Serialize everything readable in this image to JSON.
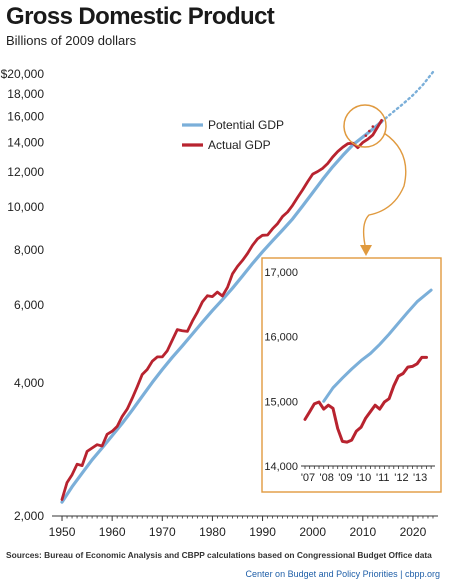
{
  "title": "Gross Domestic Product",
  "subtitle": "Billions of 2009 dollars",
  "source": "Sources: Bureau of Economic Analysis and CBPP calculations based on Congressional Budget Office data",
  "credit": "Center on Budget and Policy Priorities | cbpp.org",
  "colors": {
    "potential": "#7bafd9",
    "actual": "#b8232f",
    "inset_border": "#e09a3f",
    "axis": "#333333"
  },
  "chart_data": [
    {
      "type": "line",
      "yscale": "log",
      "xlim": [
        1948,
        2025
      ],
      "ylim": [
        2000,
        21500
      ],
      "y_ticks": [
        2000,
        4000,
        6000,
        8000,
        10000,
        12000,
        14000,
        16000,
        18000,
        20000
      ],
      "y_tick_labels": [
        "2,000",
        "4,000",
        "6,000",
        "8,000",
        "10,000",
        "12,000",
        "14,000",
        "16,000",
        "18,000",
        "$20,000"
      ],
      "x_ticks": [
        1950,
        1960,
        1970,
        1980,
        1990,
        2000,
        2010,
        2020
      ],
      "x_tick_labels": [
        "1950",
        "1960",
        "1970",
        "1980",
        "1990",
        "2000",
        "2010",
        "2020"
      ],
      "legend": {
        "position": "upper-center",
        "entries": [
          "Potential GDP",
          "Actual GDP"
        ]
      },
      "series": [
        {
          "name": "Potential GDP",
          "x": [
            1950,
            1952,
            1954,
            1956,
            1958,
            1960,
            1962,
            1964,
            1966,
            1968,
            1970,
            1972,
            1974,
            1976,
            1978,
            1980,
            1982,
            1984,
            1986,
            1988,
            1990,
            1992,
            1994,
            1996,
            1998,
            2000,
            2002,
            2004,
            2006,
            2008,
            2010,
            2012,
            2013.75
          ],
          "y": [
            2150,
            2330,
            2500,
            2680,
            2850,
            3040,
            3240,
            3470,
            3730,
            4010,
            4290,
            4570,
            4850,
            5160,
            5490,
            5830,
            6170,
            6550,
            6980,
            7450,
            7920,
            8390,
            8870,
            9400,
            10050,
            10780,
            11550,
            12330,
            13080,
            13820,
            14400,
            15000,
            15600
          ]
        },
        {
          "name": "Potential GDP (projected)",
          "style": "dotted",
          "x": [
            2013.75,
            2016,
            2018,
            2020,
            2022,
            2024
          ],
          "y": [
            15600,
            16380,
            17100,
            17900,
            18900,
            20200
          ]
        },
        {
          "name": "Actual GDP",
          "x": [
            1950,
            1951,
            1952,
            1953,
            1954,
            1955,
            1956,
            1957,
            1958,
            1959,
            1960,
            1961,
            1962,
            1963,
            1964,
            1965,
            1966,
            1967,
            1968,
            1969,
            1970,
            1971,
            1972,
            1973,
            1974,
            1975,
            1976,
            1977,
            1978,
            1979,
            1980,
            1981,
            1982,
            1983,
            1984,
            1985,
            1986,
            1987,
            1988,
            1989,
            1990,
            1991,
            1992,
            1993,
            1994,
            1995,
            1996,
            1997,
            1998,
            1999,
            2000,
            2001,
            2002,
            2003,
            2004,
            2005,
            2006,
            2007,
            2008,
            2009,
            2010,
            2011,
            2012,
            2013.75
          ],
          "y": [
            2180,
            2380,
            2480,
            2620,
            2600,
            2800,
            2850,
            2900,
            2880,
            3060,
            3110,
            3190,
            3360,
            3490,
            3690,
            3920,
            4180,
            4290,
            4480,
            4580,
            4580,
            4730,
            5000,
            5280,
            5250,
            5230,
            5520,
            5780,
            6100,
            6300,
            6270,
            6420,
            6290,
            6580,
            7060,
            7340,
            7570,
            7850,
            8190,
            8470,
            8630,
            8640,
            8930,
            9170,
            9520,
            9740,
            10090,
            10510,
            10930,
            11410,
            11870,
            12030,
            12230,
            12540,
            12970,
            13340,
            13650,
            13900,
            13950,
            13620,
            14000,
            14230,
            14550,
            15700
          ]
        }
      ]
    },
    {
      "type": "line",
      "title": "",
      "xlim": [
        2007,
        2013.85
      ],
      "ylim": [
        14000,
        17000
      ],
      "y_ticks": [
        14000,
        15000,
        16000,
        17000
      ],
      "y_tick_labels": [
        "14,000",
        "15,000",
        "16,000",
        "17,000"
      ],
      "x_ticks": [
        2007,
        2008,
        2009,
        2010,
        2011,
        2012,
        2013
      ],
      "x_tick_labels": [
        "'07",
        "'08",
        "'09",
        "'10",
        "'11",
        "'12",
        "'13"
      ],
      "series": [
        {
          "name": "Potential GDP",
          "x": [
            2008,
            2008.5,
            2009,
            2009.5,
            2010,
            2010.5,
            2011,
            2011.5,
            2012,
            2012.5,
            2013,
            2013.75
          ],
          "y": [
            15000,
            15210,
            15360,
            15500,
            15630,
            15740,
            15880,
            16040,
            16210,
            16380,
            16540,
            16720
          ]
        },
        {
          "name": "Actual GDP",
          "x": [
            2007,
            2007.25,
            2007.5,
            2007.75,
            2008,
            2008.25,
            2008.5,
            2008.75,
            2009,
            2009.25,
            2009.5,
            2009.75,
            2010,
            2010.25,
            2010.5,
            2010.75,
            2011,
            2011.25,
            2011.5,
            2011.75,
            2012,
            2012.25,
            2012.5,
            2012.75,
            2013,
            2013.25,
            2013.5
          ],
          "y": [
            14720,
            14840,
            14960,
            14990,
            14880,
            14940,
            14890,
            14580,
            14380,
            14370,
            14400,
            14540,
            14600,
            14740,
            14840,
            14940,
            14880,
            14990,
            15040,
            15240,
            15390,
            15430,
            15530,
            15540,
            15580,
            15680,
            15680
          ]
        }
      ]
    }
  ]
}
